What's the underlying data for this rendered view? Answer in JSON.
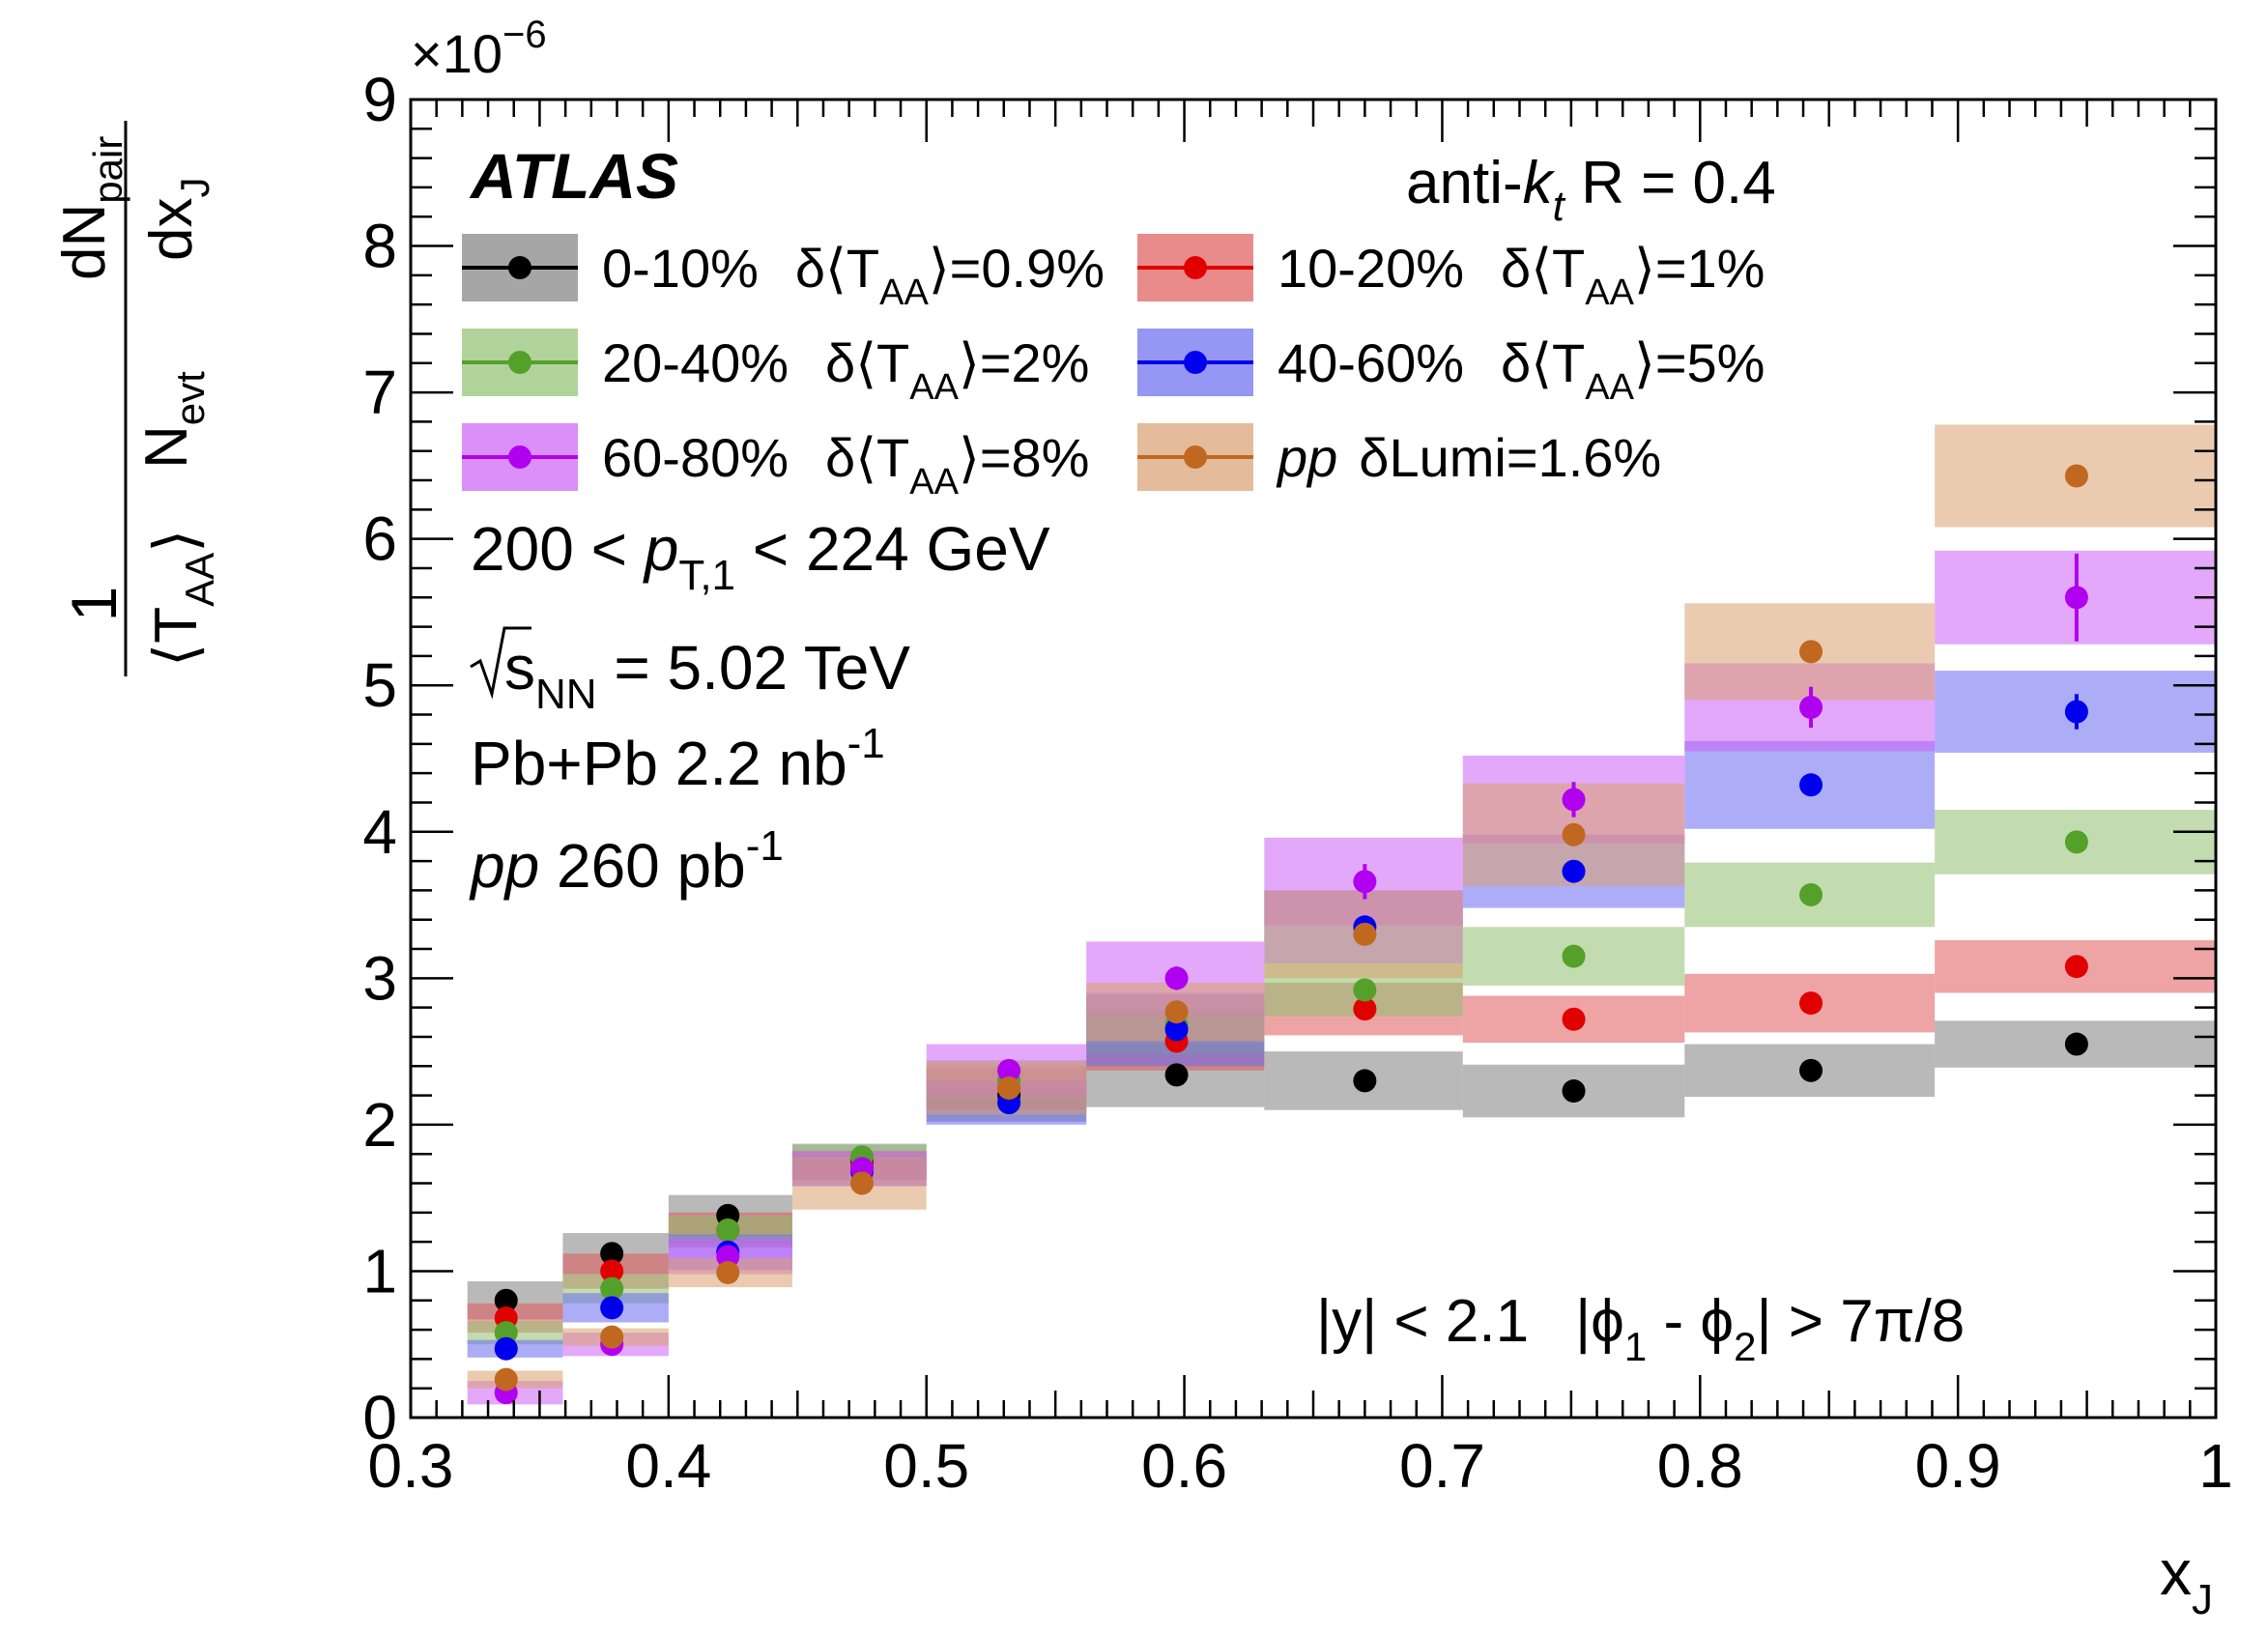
{
  "chart_data": {
    "type": "scatter",
    "experiment": "ATLAS",
    "jet_label": {
      "prefix": "anti-",
      "k": "k",
      "t": "t",
      "suffix": " R = 0.4"
    },
    "x_title": {
      "main": "x",
      "sub": "J"
    },
    "y_title": {
      "one": "1",
      "taa_main": "T",
      "taa_sub": "AA",
      "nevt_main": "N",
      "nevt_sub": "evt",
      "d1": "dN",
      "d1_sub": "pair",
      "d2": "dx",
      "d2_sub": "J"
    },
    "y_multiplier": {
      "base": "×10",
      "exp": "−6"
    },
    "xlim": [
      0.3,
      1.0
    ],
    "ylim": [
      0,
      9
    ],
    "x_ticks": [
      "0.3",
      "0.4",
      "0.5",
      "0.6",
      "0.7",
      "0.8",
      "0.9",
      "1"
    ],
    "y_ticks": [
      "0",
      "1",
      "2",
      "3",
      "4",
      "5",
      "6",
      "7",
      "8",
      "9"
    ],
    "bins": [
      [
        0.322,
        0.359
      ],
      [
        0.359,
        0.4
      ],
      [
        0.4,
        0.448
      ],
      [
        0.448,
        0.5
      ],
      [
        0.5,
        0.562
      ],
      [
        0.562,
        0.631
      ],
      [
        0.631,
        0.708
      ],
      [
        0.708,
        0.794
      ],
      [
        0.794,
        0.891
      ],
      [
        0.891,
        1.0
      ]
    ],
    "x_centers": [
      0.337,
      0.378,
      0.423,
      0.475,
      0.532,
      0.597,
      0.67,
      0.751,
      0.843,
      0.946
    ],
    "series": [
      {
        "name": "0-10%",
        "sigma": "0.9%",
        "color": "#000000",
        "band_color": "#808080",
        "values": [
          0.8,
          1.12,
          1.38,
          1.75,
          2.2,
          2.34,
          2.3,
          2.23,
          2.37,
          2.55
        ],
        "errors": [
          0.02,
          0.02,
          0.02,
          0.02,
          0.02,
          0.03,
          0.03,
          0.03,
          0.03,
          0.03
        ],
        "syst": [
          0.13,
          0.14,
          0.14,
          0.12,
          0.18,
          0.22,
          0.2,
          0.18,
          0.18,
          0.16
        ]
      },
      {
        "name": "10-20%",
        "sigma": "1%",
        "color": "#e00000",
        "band_color": "#e05a5a",
        "values": [
          0.68,
          1.0,
          1.28,
          1.72,
          2.25,
          2.57,
          2.79,
          2.72,
          2.83,
          3.08
        ],
        "errors": [
          0.02,
          0.02,
          0.02,
          0.02,
          0.02,
          0.03,
          0.03,
          0.03,
          0.03,
          0.04
        ],
        "syst": [
          0.1,
          0.12,
          0.12,
          0.1,
          0.15,
          0.2,
          0.18,
          0.16,
          0.2,
          0.18
        ]
      },
      {
        "name": "20-40%",
        "sigma": "2%",
        "color": "#55a02a",
        "band_color": "#8fc070",
        "values": [
          0.58,
          0.88,
          1.28,
          1.78,
          2.3,
          2.68,
          2.92,
          3.15,
          3.57,
          3.93
        ],
        "errors": [
          0.02,
          0.02,
          0.02,
          0.02,
          0.02,
          0.03,
          0.03,
          0.03,
          0.03,
          0.04
        ],
        "syst": [
          0.08,
          0.1,
          0.1,
          0.08,
          0.14,
          0.2,
          0.18,
          0.2,
          0.22,
          0.22
        ]
      },
      {
        "name": "40-60%",
        "sigma": "5%",
        "color": "#0000ee",
        "band_color": "#6a6af0",
        "values": [
          0.47,
          0.75,
          1.13,
          1.68,
          2.15,
          2.65,
          3.35,
          3.73,
          4.32,
          4.82
        ],
        "errors": [
          0.02,
          0.02,
          0.03,
          0.03,
          0.03,
          0.04,
          0.05,
          0.06,
          0.07,
          0.12
        ],
        "syst": [
          0.06,
          0.1,
          0.12,
          0.1,
          0.15,
          0.25,
          0.25,
          0.25,
          0.3,
          0.28
        ]
      },
      {
        "name": "60-80%",
        "sigma": "8%",
        "color": "#b000f0",
        "band_color": "#cc60f5",
        "values": [
          0.17,
          0.5,
          1.1,
          1.7,
          2.37,
          3.0,
          3.66,
          4.22,
          4.85,
          5.6
        ],
        "errors": [
          0.02,
          0.03,
          0.04,
          0.05,
          0.07,
          0.08,
          0.12,
          0.12,
          0.14,
          0.3
        ],
        "syst": [
          0.08,
          0.08,
          0.12,
          0.12,
          0.18,
          0.25,
          0.3,
          0.3,
          0.3,
          0.32
        ]
      },
      {
        "name": "pp",
        "sigma": "δLumi=1.6%",
        "color": "#c06820",
        "band_color": "#d8a070",
        "values": [
          0.26,
          0.55,
          0.99,
          1.6,
          2.25,
          2.77,
          3.3,
          3.98,
          5.23,
          6.43
        ],
        "errors": [
          0.01,
          0.01,
          0.01,
          0.01,
          0.02,
          0.02,
          0.02,
          0.02,
          0.03,
          0.03
        ],
        "syst": [
          0.06,
          0.06,
          0.1,
          0.18,
          0.18,
          0.2,
          0.3,
          0.35,
          0.33,
          0.35
        ]
      }
    ],
    "legend": [
      {
        "label": "0-10%",
        "delta": "δ⟨T",
        "sub": "AA",
        "tail": "⟩=0.9%"
      },
      {
        "label": "10-20%",
        "delta": "δ⟨T",
        "sub": "AA",
        "tail": "⟩=1%"
      },
      {
        "label": "20-40%",
        "delta": "δ⟨T",
        "sub": "AA",
        "tail": "⟩=2%"
      },
      {
        "label": "40-60%",
        "delta": "δ⟨T",
        "sub": "AA",
        "tail": "⟩=5%"
      },
      {
        "label": "60-80%",
        "delta": "δ⟨T",
        "sub": "AA",
        "tail": "⟩=8%"
      },
      {
        "label": "pp",
        "delta": "δLumi=1.6%",
        "sub": "",
        "tail": ""
      }
    ],
    "annotations": {
      "pt_range": {
        "lo": "200 < ",
        "p": "p",
        "sub": "T,1",
        "hi": " < 224 GeV"
      },
      "energy": {
        "s": "s",
        "sub": "NN",
        "rest": " = 5.02 TeV"
      },
      "pbpb_lumi": {
        "text": "Pb+Pb 2.2 nb",
        "sup": "-1"
      },
      "pp_lumi": {
        "pp": "pp",
        "text": " 260 pb",
        "sup": "-1"
      },
      "cuts": {
        "y": "|y| < 2.1",
        "phi_a": "|ϕ",
        "sub1": "1",
        "mid": " - ϕ",
        "sub2": "2",
        "end": "| > 7π/8"
      }
    }
  }
}
